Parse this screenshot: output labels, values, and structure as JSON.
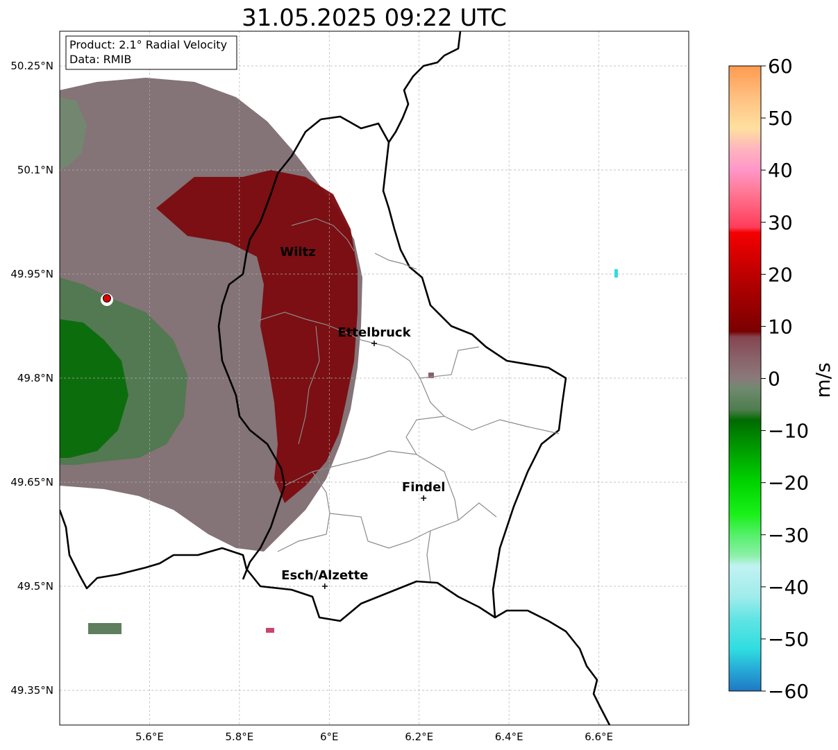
{
  "title": "31.05.2025 09:22 UTC",
  "info_box": {
    "product": "Product: 2.1° Radial Velocity",
    "data_source": "Data: RMIB"
  },
  "map": {
    "lon_range": [
      5.4,
      6.8
    ],
    "lat_range": [
      49.3,
      50.3
    ],
    "lon_ticks": [
      {
        "value": 5.6,
        "label": "5.6°E"
      },
      {
        "value": 5.8,
        "label": "5.8°E"
      },
      {
        "value": 6.0,
        "label": "6°E"
      },
      {
        "value": 6.2,
        "label": "6.2°E"
      },
      {
        "value": 6.4,
        "label": "6.4°E"
      },
      {
        "value": 6.6,
        "label": "6.6°E"
      }
    ],
    "lat_ticks": [
      {
        "value": 50.25,
        "label": "50.25°N"
      },
      {
        "value": 50.1,
        "label": "50.1°N"
      },
      {
        "value": 49.95,
        "label": "49.95°N"
      },
      {
        "value": 49.8,
        "label": "49.8°N"
      },
      {
        "value": 49.65,
        "label": "49.65°N"
      },
      {
        "value": 49.5,
        "label": "49.5°N"
      },
      {
        "value": 49.35,
        "label": "49.35°N"
      }
    ],
    "grid": true,
    "radar_site": {
      "lon": 5.505,
      "lat": 49.915,
      "color": "#e00000"
    },
    "cities": [
      {
        "name": "Wiltz",
        "lon": 5.93,
        "lat": 49.966,
        "marker": false
      },
      {
        "name": "Ettelbruck",
        "lon": 6.1,
        "lat": 49.85,
        "marker": true
      },
      {
        "name": "Findel",
        "lon": 6.21,
        "lat": 49.627,
        "marker": true
      },
      {
        "name": "Esch/Alzette",
        "lon": 5.99,
        "lat": 49.5,
        "marker": true
      }
    ]
  },
  "colorbar": {
    "label": "m/s",
    "min": -60,
    "max": 60,
    "ticks": [
      {
        "value": 60,
        "label": "60"
      },
      {
        "value": 50,
        "label": "50"
      },
      {
        "value": 40,
        "label": "40"
      },
      {
        "value": 30,
        "label": "30"
      },
      {
        "value": 20,
        "label": "20"
      },
      {
        "value": 10,
        "label": "10"
      },
      {
        "value": 0,
        "label": "0"
      },
      {
        "value": -10,
        "label": "−10"
      },
      {
        "value": -20,
        "label": "−20"
      },
      {
        "value": -30,
        "label": "−30"
      },
      {
        "value": -40,
        "label": "−40"
      },
      {
        "value": -50,
        "label": "−50"
      },
      {
        "value": -60,
        "label": "−60"
      }
    ],
    "stops": [
      {
        "v": -60,
        "color": "#1f78c4"
      },
      {
        "v": -56,
        "color": "#26a9d6"
      },
      {
        "v": -52,
        "color": "#2fdde0"
      },
      {
        "v": -46,
        "color": "#63e4e4"
      },
      {
        "v": -42,
        "color": "#9eeceb"
      },
      {
        "v": -36,
        "color": "#c2f2f2"
      },
      {
        "v": -34,
        "color": "#8cf0a8"
      },
      {
        "v": -30,
        "color": "#54f06a"
      },
      {
        "v": -26,
        "color": "#18f018"
      },
      {
        "v": -20,
        "color": "#00d400"
      },
      {
        "v": -14,
        "color": "#00a000"
      },
      {
        "v": -8,
        "color": "#006b00"
      },
      {
        "v": -6,
        "color": "#4f7d4f"
      },
      {
        "v": -2,
        "color": "#6e8a6e"
      },
      {
        "v": 0,
        "color": "#8a7a7a"
      },
      {
        "v": 4,
        "color": "#896169"
      },
      {
        "v": 8,
        "color": "#854550"
      },
      {
        "v": 9,
        "color": "#7a0000"
      },
      {
        "v": 18,
        "color": "#b00000"
      },
      {
        "v": 28,
        "color": "#f40000"
      },
      {
        "v": 29,
        "color": "#ff3c5a"
      },
      {
        "v": 36,
        "color": "#ff7a96"
      },
      {
        "v": 40,
        "color": "#ff96c8"
      },
      {
        "v": 44,
        "color": "#ffb4be"
      },
      {
        "v": 48,
        "color": "#ffe0a0"
      },
      {
        "v": 54,
        "color": "#ffc080"
      },
      {
        "v": 60,
        "color": "#ff9a50"
      }
    ]
  }
}
